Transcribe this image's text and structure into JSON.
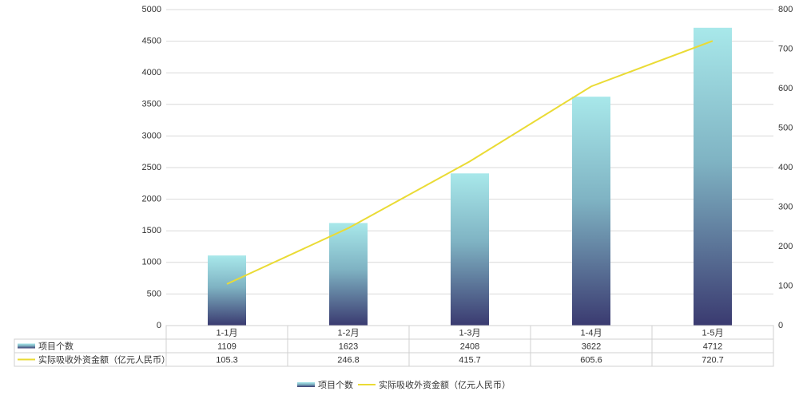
{
  "chart_data": {
    "type": "combo",
    "categories": [
      "1-1月",
      "1-2月",
      "1-3月",
      "1-4月",
      "1-5月"
    ],
    "series": [
      {
        "name": "项目个数",
        "type": "bar",
        "color": "#3a3a70",
        "values": [
          1109,
          1623,
          2408,
          3622,
          4712
        ]
      },
      {
        "name": "实际吸收外资金额（亿元人民币）",
        "type": "line",
        "axis": "y2",
        "color": "#eadb35",
        "values": [
          105.3,
          246.8,
          415.7,
          605.6,
          720.7
        ]
      }
    ],
    "ylim": [
      0,
      5000
    ],
    "yticks": [
      0,
      500,
      1000,
      1500,
      2000,
      2500,
      3000,
      3500,
      4000,
      4500,
      5000
    ],
    "y2lim": [
      0,
      800
    ],
    "y2ticks": [
      0,
      100,
      200,
      300,
      400,
      500,
      600,
      700,
      800
    ],
    "grid": true,
    "legend": "bottom",
    "data_table": true
  }
}
